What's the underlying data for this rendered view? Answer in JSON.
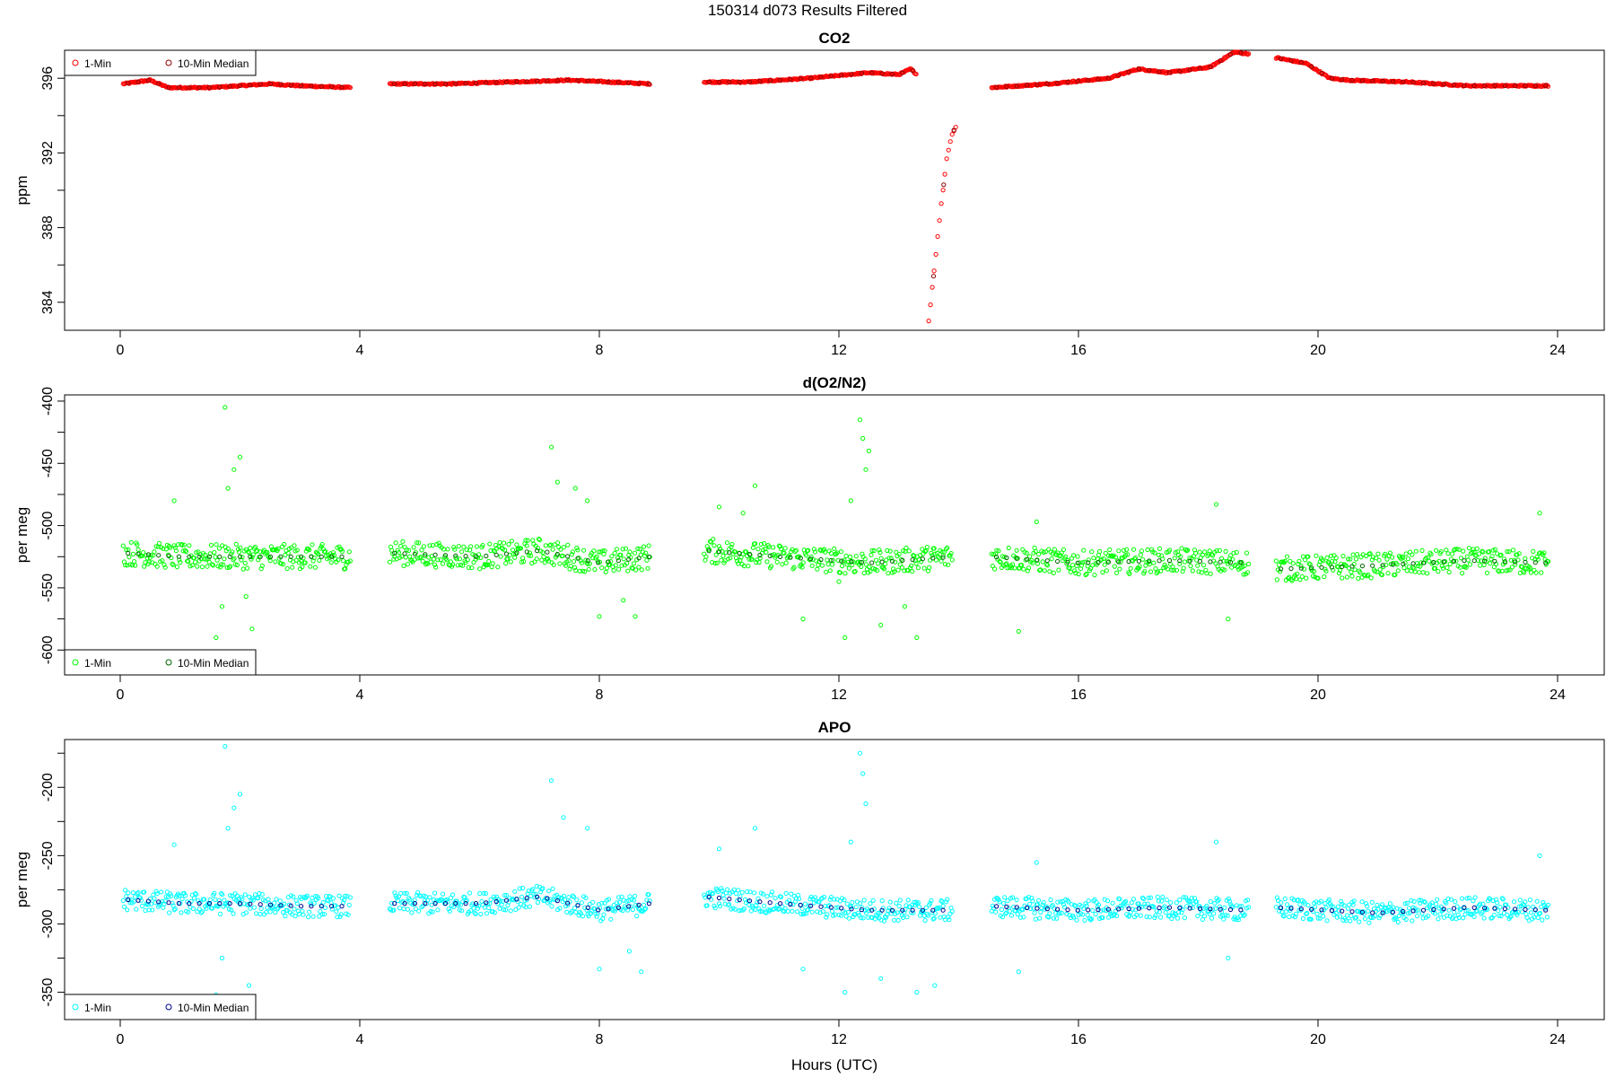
{
  "figure": {
    "title": "150314   d073   Results Filtered",
    "xlabel": "Hours (UTC)"
  },
  "chart_data": [
    {
      "type": "scatter",
      "title": "CO2",
      "xlabel": "",
      "ylabel": "ppm",
      "xlim": [
        0,
        24
      ],
      "ylim": [
        382.5,
        397.5
      ],
      "xticks": [
        0,
        4,
        8,
        12,
        16,
        20,
        24
      ],
      "yticks": [
        384,
        388,
        392,
        396
      ],
      "grid": false,
      "legend_position": "top-left",
      "legend": [
        {
          "label": "1-Min",
          "color": "#ff0000"
        },
        {
          "label": "10-Min Median",
          "color": "#8b0000"
        }
      ],
      "series": [
        {
          "name": "1-Min",
          "color": "#ff0000",
          "segments": [
            {
              "start": 0.05,
              "end": 3.85,
              "profile": [
                [
                  0.05,
                  395.7
                ],
                [
                  0.5,
                  395.9
                ],
                [
                  0.8,
                  395.5
                ],
                [
                  1.5,
                  395.5
                ],
                [
                  2.5,
                  395.7
                ],
                [
                  3.0,
                  395.6
                ],
                [
                  3.85,
                  395.5
                ]
              ]
            },
            {
              "start": 4.5,
              "end": 8.85,
              "profile": [
                [
                  4.5,
                  395.7
                ],
                [
                  5.5,
                  395.7
                ],
                [
                  6.5,
                  395.8
                ],
                [
                  7.5,
                  395.9
                ],
                [
                  8.85,
                  395.7
                ]
              ]
            },
            {
              "start": 9.75,
              "end": 13.3,
              "profile": [
                [
                  9.75,
                  395.8
                ],
                [
                  10.5,
                  395.8
                ],
                [
                  11.5,
                  396.0
                ],
                [
                  12.5,
                  396.3
                ],
                [
                  13.0,
                  396.2
                ],
                [
                  13.2,
                  396.5
                ],
                [
                  13.3,
                  396.2
                ]
              ]
            },
            {
              "start": 13.5,
              "end": 13.95,
              "profile": [
                [
                  13.5,
                  383.0
                ],
                [
                  13.55,
                  384.5
                ],
                [
                  13.6,
                  386.0
                ],
                [
                  13.65,
                  387.5
                ],
                [
                  13.7,
                  389.0
                ],
                [
                  13.75,
                  390.3
                ],
                [
                  13.8,
                  391.7
                ],
                [
                  13.85,
                  392.5
                ],
                [
                  13.9,
                  393.1
                ],
                [
                  13.95,
                  393.4
                ]
              ]
            },
            {
              "start": 14.55,
              "end": 18.85,
              "profile": [
                [
                  14.55,
                  395.5
                ],
                [
                  15.5,
                  395.7
                ],
                [
                  16.5,
                  396.0
                ],
                [
                  17.0,
                  396.5
                ],
                [
                  17.5,
                  396.3
                ],
                [
                  18.2,
                  396.6
                ],
                [
                  18.6,
                  397.4
                ],
                [
                  18.85,
                  397.3
                ]
              ]
            },
            {
              "start": 19.3,
              "end": 23.85,
              "profile": [
                [
                  19.3,
                  397.1
                ],
                [
                  19.8,
                  396.8
                ],
                [
                  20.2,
                  396.0
                ],
                [
                  20.5,
                  395.9
                ],
                [
                  21.5,
                  395.8
                ],
                [
                  22.5,
                  395.6
                ],
                [
                  23.5,
                  395.6
                ],
                [
                  23.85,
                  395.6
                ]
              ]
            }
          ]
        },
        {
          "name": "10-Min Median",
          "color": "#8b0000",
          "segments": []
        }
      ]
    },
    {
      "type": "scatter",
      "title": "d(O2/N2)",
      "xlabel": "",
      "ylabel": "per meg",
      "xlim": [
        0,
        24
      ],
      "ylim": [
        -620,
        -395
      ],
      "xticks": [
        0,
        4,
        8,
        12,
        16,
        20,
        24
      ],
      "yticks": [
        -600,
        -550,
        -500,
        -450,
        -400
      ],
      "grid": false,
      "legend_position": "bottom-left",
      "legend": [
        {
          "label": "1-Min",
          "color": "#00ff00"
        },
        {
          "label": "10-Min Median",
          "color": "#006400"
        }
      ],
      "series": [
        {
          "name": "1-Min",
          "color": "#00ff00",
          "segments": [
            {
              "start": 0.05,
              "end": 3.85,
              "profile": [
                [
                  0.05,
                  -522
                ],
                [
                  1.0,
                  -525
                ],
                [
                  2.0,
                  -525
                ],
                [
                  3.0,
                  -525
                ],
                [
                  3.85,
                  -525
                ]
              ]
            },
            {
              "start": 4.5,
              "end": 8.85,
              "profile": [
                [
                  4.5,
                  -522
                ],
                [
                  6.0,
                  -525
                ],
                [
                  7.0,
                  -520
                ],
                [
                  8.0,
                  -530
                ],
                [
                  8.85,
                  -525
                ]
              ]
            },
            {
              "start": 9.75,
              "end": 13.9,
              "profile": [
                [
                  9.75,
                  -520
                ],
                [
                  11.0,
                  -525
                ],
                [
                  12.5,
                  -530
                ],
                [
                  13.9,
                  -525
                ]
              ]
            },
            {
              "start": 14.55,
              "end": 18.85,
              "profile": [
                [
                  14.55,
                  -525
                ],
                [
                  16.0,
                  -530
                ],
                [
                  17.5,
                  -528
                ],
                [
                  18.85,
                  -530
                ]
              ]
            },
            {
              "start": 19.3,
              "end": 23.85,
              "profile": [
                [
                  19.3,
                  -535
                ],
                [
                  21.0,
                  -532
                ],
                [
                  22.5,
                  -528
                ],
                [
                  23.85,
                  -530
                ]
              ]
            }
          ],
          "outliers": [
            [
              0.9,
              -480
            ],
            [
              1.75,
              -405
            ],
            [
              1.8,
              -470
            ],
            [
              1.9,
              -455
            ],
            [
              2.0,
              -445
            ],
            [
              1.6,
              -590
            ],
            [
              1.7,
              -565
            ],
            [
              2.1,
              -557
            ],
            [
              2.2,
              -583
            ],
            [
              7.2,
              -437
            ],
            [
              7.3,
              -465
            ],
            [
              7.6,
              -470
            ],
            [
              7.8,
              -480
            ],
            [
              8.0,
              -573
            ],
            [
              8.4,
              -560
            ],
            [
              8.6,
              -573
            ],
            [
              10.0,
              -485
            ],
            [
              10.4,
              -490
            ],
            [
              10.6,
              -468
            ],
            [
              11.4,
              -575
            ],
            [
              12.0,
              -545
            ],
            [
              12.2,
              -480
            ],
            [
              12.35,
              -415
            ],
            [
              12.4,
              -430
            ],
            [
              12.45,
              -455
            ],
            [
              12.5,
              -440
            ],
            [
              12.1,
              -590
            ],
            [
              12.7,
              -580
            ],
            [
              13.3,
              -590
            ],
            [
              13.1,
              -565
            ],
            [
              15.3,
              -497
            ],
            [
              15.0,
              -585
            ],
            [
              18.3,
              -483
            ],
            [
              18.5,
              -575
            ],
            [
              23.7,
              -490
            ]
          ]
        },
        {
          "name": "10-Min Median",
          "color": "#006400",
          "segments": []
        }
      ]
    },
    {
      "type": "scatter",
      "title": "APO",
      "xlabel": "Hours (UTC)",
      "ylabel": "per meg",
      "xlim": [
        0,
        24
      ],
      "ylim": [
        -370,
        -165
      ],
      "xticks": [
        0,
        4,
        8,
        12,
        16,
        20,
        24
      ],
      "yticks": [
        -350,
        -300,
        -250,
        -200
      ],
      "grid": false,
      "legend_position": "bottom-left",
      "legend": [
        {
          "label": "1-Min",
          "color": "#00ffff"
        },
        {
          "label": "10-Min Median",
          "color": "#00008b"
        }
      ],
      "series": [
        {
          "name": "1-Min",
          "color": "#00ffff",
          "segments": [
            {
              "start": 0.05,
              "end": 3.85,
              "profile": [
                [
                  0.05,
                  -282
                ],
                [
                  1.0,
                  -285
                ],
                [
                  2.0,
                  -285
                ],
                [
                  3.0,
                  -287
                ],
                [
                  3.85,
                  -287
                ]
              ]
            },
            {
              "start": 4.5,
              "end": 8.85,
              "profile": [
                [
                  4.5,
                  -285
                ],
                [
                  6.0,
                  -285
                ],
                [
                  7.0,
                  -280
                ],
                [
                  8.0,
                  -290
                ],
                [
                  8.85,
                  -285
                ]
              ]
            },
            {
              "start": 9.75,
              "end": 13.9,
              "profile": [
                [
                  9.75,
                  -280
                ],
                [
                  11.0,
                  -285
                ],
                [
                  12.5,
                  -290
                ],
                [
                  13.9,
                  -290
                ]
              ]
            },
            {
              "start": 14.55,
              "end": 18.85,
              "profile": [
                [
                  14.55,
                  -287
                ],
                [
                  16.0,
                  -290
                ],
                [
                  17.5,
                  -288
                ],
                [
                  18.85,
                  -290
                ]
              ]
            },
            {
              "start": 19.3,
              "end": 23.85,
              "profile": [
                [
                  19.3,
                  -288
                ],
                [
                  21.0,
                  -292
                ],
                [
                  22.5,
                  -288
                ],
                [
                  23.85,
                  -290
                ]
              ]
            }
          ],
          "outliers": [
            [
              0.9,
              -242
            ],
            [
              1.75,
              -170
            ],
            [
              1.8,
              -230
            ],
            [
              1.9,
              -215
            ],
            [
              2.0,
              -205
            ],
            [
              1.6,
              -352
            ],
            [
              1.7,
              -325
            ],
            [
              2.15,
              -345
            ],
            [
              7.2,
              -195
            ],
            [
              7.4,
              -222
            ],
            [
              7.8,
              -230
            ],
            [
              8.0,
              -333
            ],
            [
              8.5,
              -320
            ],
            [
              8.7,
              -335
            ],
            [
              10.0,
              -245
            ],
            [
              10.6,
              -230
            ],
            [
              11.4,
              -333
            ],
            [
              12.2,
              -240
            ],
            [
              12.35,
              -175
            ],
            [
              12.4,
              -190
            ],
            [
              12.45,
              -212
            ],
            [
              12.1,
              -350
            ],
            [
              12.7,
              -340
            ],
            [
              13.3,
              -350
            ],
            [
              13.6,
              -345
            ],
            [
              15.3,
              -255
            ],
            [
              15.0,
              -335
            ],
            [
              18.3,
              -240
            ],
            [
              18.5,
              -325
            ],
            [
              23.7,
              -250
            ]
          ]
        },
        {
          "name": "10-Min Median",
          "color": "#00008b",
          "segments": []
        }
      ]
    }
  ]
}
